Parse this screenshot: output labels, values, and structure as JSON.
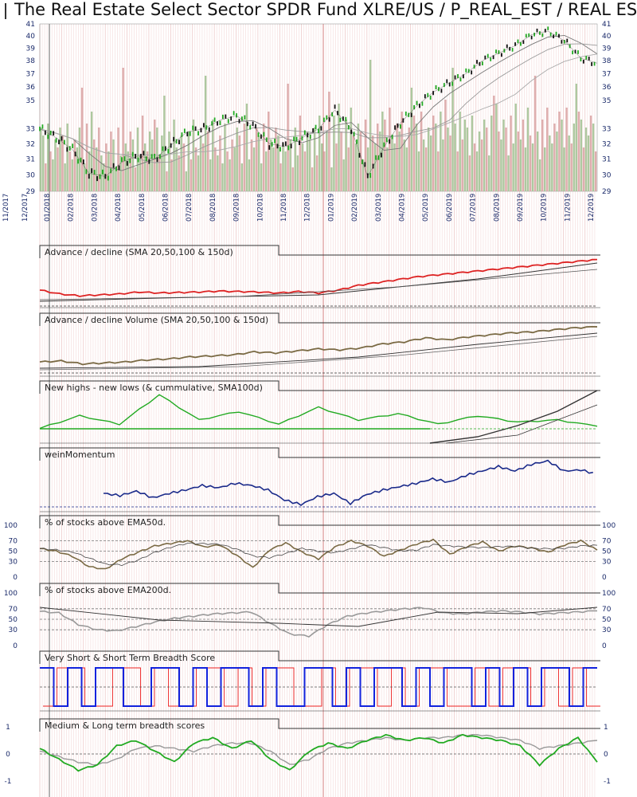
{
  "title": "The Real Estate Select Sector SPDR Fund XLRE/US / P_REAL_EST / REAL ESTAT",
  "colors": {
    "up_candle": "#22aa22",
    "down_candle": "#111111",
    "vol_up": "#9fbf8f",
    "vol_down": "#d8a0a0",
    "ad_red": "#dd2222",
    "adv_olive": "#7a6a44",
    "nhnl_green": "#22aa22",
    "wein_blue": "#1a2a8a",
    "breadth_blue": "#1122dd",
    "breadth_red": "#ee2222",
    "score_green": "#22aa22",
    "score_gray": "#999999",
    "axis_text": "#1a2a6a"
  },
  "chart_data": [
    {
      "type": "line",
      "panel": "price",
      "title": "The Real Estate Select Sector SPDR Fund XLRE/US / P_REAL_EST / REAL ESTAT",
      "xlabel": "",
      "ylabel": "",
      "x_tick_labels": [
        "11/2017",
        "12/2017",
        "01/2018",
        "02/2018",
        "03/2018",
        "04/2018",
        "05/2018",
        "06/2018",
        "07/2018",
        "08/2018",
        "09/2018",
        "10/2018",
        "11/2018",
        "12/2018",
        "01/2019",
        "02/2019",
        "03/2019",
        "04/2019",
        "05/2019",
        "06/2019",
        "07/2019",
        "08/2019",
        "09/2019",
        "10/2019",
        "11/2019",
        "12/2019"
      ],
      "y_tick_labels": [
        "29",
        "30",
        "31",
        "32",
        "33",
        "35",
        "36",
        "37",
        "38",
        "39",
        "40",
        "41"
      ],
      "ylim": [
        29,
        41
      ],
      "scale": "log",
      "grid": true,
      "series": [
        {
          "values": [
            33.0,
            32.4,
            31.6,
            30.1,
            29.9,
            30.8,
            31.2,
            31.0,
            31.9,
            32.8,
            33.0,
            33.6,
            33.9,
            33.2,
            32.0,
            31.8,
            32.4,
            33.0,
            34.3,
            33.0,
            29.9,
            31.8,
            33.4,
            34.6,
            35.6,
            36.3,
            37.0,
            38.0,
            38.6,
            39.2,
            40.1,
            40.4,
            39.6,
            38.2,
            37.8
          ]
        }
      ]
    },
    {
      "type": "line",
      "panel": "advance_decline",
      "title": "Advance / decline (SMA 20,50,100 & 150d)",
      "series": [
        {
          "values": [
            0.3,
            0.22,
            0.18,
            0.2,
            0.22,
            0.26,
            0.24,
            0.25,
            0.26,
            0.28,
            0.27,
            0.26,
            0.24,
            0.27,
            0.24,
            0.3,
            0.4,
            0.46,
            0.52,
            0.58,
            0.62,
            0.66,
            0.7,
            0.74,
            0.78,
            0.82,
            0.86,
            0.9,
            0.94
          ]
        }
      ]
    },
    {
      "type": "line",
      "panel": "advance_decline_volume",
      "title": "Advance / decline Volume (SMA 20,50,100 & 150d)",
      "series": [
        {
          "values": [
            0.22,
            0.24,
            0.18,
            0.2,
            0.22,
            0.26,
            0.28,
            0.32,
            0.34,
            0.36,
            0.42,
            0.4,
            0.44,
            0.48,
            0.46,
            0.5,
            0.58,
            0.62,
            0.7,
            0.66,
            0.72,
            0.76,
            0.8,
            0.82,
            0.86,
            0.9,
            0.92
          ]
        }
      ]
    },
    {
      "type": "line",
      "panel": "new_highs_lows",
      "title": "New highs - new lows (& cummulative, SMA100d)",
      "series": [
        {
          "values": [
            0,
            0,
            0,
            0,
            0,
            0,
            0,
            0,
            0,
            0,
            0,
            0,
            0,
            0,
            0,
            0,
            0,
            0,
            0,
            0.3,
            0.1,
            0.8,
            0.2,
            0.4,
            0.1,
            0.5,
            0.2,
            0.35,
            0.1,
            0.3,
            0.15,
            0.2,
            0.05
          ]
        }
      ]
    },
    {
      "type": "line",
      "panel": "wein_momentum",
      "title": "weinMomentum",
      "series": [
        {
          "values": [
            0.3,
            0.26,
            0.34,
            0.22,
            0.3,
            0.36,
            0.44,
            0.4,
            0.48,
            0.44,
            0.36,
            0.18,
            0.1,
            0.24,
            0.3,
            0.12,
            0.28,
            0.36,
            0.42,
            0.48,
            0.56,
            0.5,
            0.62,
            0.7,
            0.78,
            0.7,
            0.82,
            0.88,
            0.7,
            0.72,
            0.64
          ]
        }
      ]
    },
    {
      "type": "line",
      "panel": "pct_above_ema50",
      "title": "% of stocks above EMA50d.",
      "y_tick_labels": [
        "0",
        "30",
        "50",
        "70",
        "100"
      ],
      "ylim": [
        0,
        100
      ],
      "series": [
        {
          "values": [
            55,
            50,
            40,
            20,
            15,
            35,
            48,
            60,
            65,
            70,
            58,
            62,
            42,
            18,
            52,
            66,
            48,
            35,
            58,
            70,
            60,
            40,
            52,
            64,
            72,
            44,
            58,
            68,
            50,
            60,
            56,
            48,
            62,
            70,
            52
          ]
        }
      ]
    },
    {
      "type": "line",
      "panel": "pct_above_ema200",
      "title": "% of stocks above EMA200d.",
      "y_tick_labels": [
        "0",
        "30",
        "50",
        "70",
        "100"
      ],
      "ylim": [
        0,
        100
      ],
      "series": [
        {
          "values": [
            65,
            62,
            40,
            30,
            28,
            36,
            45,
            52,
            56,
            60,
            62,
            64,
            42,
            22,
            18,
            40,
            56,
            62,
            66,
            70,
            72,
            62,
            60,
            64,
            66,
            64,
            60,
            62,
            64,
            66
          ]
        }
      ]
    },
    {
      "type": "line",
      "panel": "breadth_score_short",
      "title": "Very Short & Short Term Breadth Score",
      "series": [
        {
          "name": "",
          "values": [
            1,
            0,
            1,
            0,
            1,
            1,
            0,
            0,
            1,
            1,
            0,
            1,
            0,
            1,
            1,
            0,
            1,
            0,
            0,
            1,
            1,
            0,
            1,
            0,
            1,
            1,
            0,
            1,
            0,
            1,
            1,
            0,
            1,
            0,
            1,
            0,
            1,
            1,
            0,
            1
          ]
        },
        {
          "name": "",
          "values": [
            0,
            1,
            1,
            0,
            0,
            1,
            1,
            0,
            1,
            0,
            0,
            1,
            1,
            0,
            1,
            0,
            1,
            1,
            0,
            0,
            1,
            0,
            1,
            1,
            0,
            1,
            0,
            1,
            1,
            0,
            0,
            1,
            0,
            1,
            1,
            0,
            1,
            0,
            1,
            0
          ]
        }
      ]
    },
    {
      "type": "line",
      "panel": "breadth_score_medium_long",
      "title": "Medium & Long term breadth scores",
      "y_tick_labels": [
        "-1",
        "0",
        "1"
      ],
      "ylim": [
        -1,
        1
      ],
      "series": [
        {
          "values": [
            0.2,
            -0.2,
            -0.6,
            -0.4,
            0.3,
            0.5,
            0.1,
            -0.3,
            0.4,
            0.6,
            0.2,
            0.5,
            -0.2,
            -0.6,
            0.1,
            0.4,
            0.2,
            0.5,
            0.7,
            0.5,
            0.6,
            0.4,
            0.7,
            0.6,
            0.5,
            0.3,
            -0.4,
            0.2,
            0.6,
            -0.3
          ]
        },
        {
          "values": [
            0.1,
            -0.1,
            -0.3,
            -0.4,
            -0.2,
            0.2,
            0.3,
            0.2,
            0.1,
            0.3,
            0.4,
            0.4,
            0.1,
            -0.4,
            -0.2,
            0.2,
            0.4,
            0.5,
            0.6,
            0.5,
            0.6,
            0.6,
            0.7,
            0.7,
            0.6,
            0.5,
            0.2,
            0.3,
            0.4,
            0.5
          ]
        }
      ]
    }
  ]
}
